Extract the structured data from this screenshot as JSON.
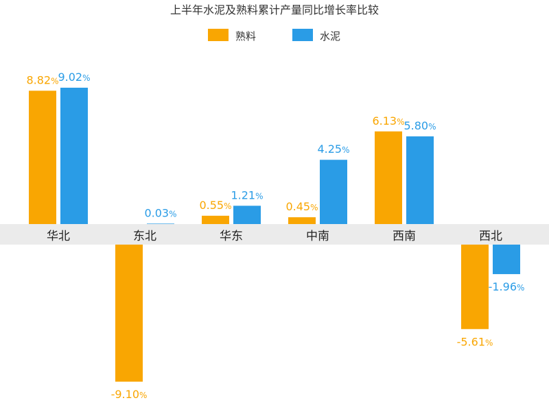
{
  "chart_data": {
    "type": "bar",
    "title": "上半年水泥及熟料累计产量同比增长率比较",
    "xlabel": "",
    "ylabel": "",
    "categories": [
      "华北",
      "东北",
      "华东",
      "中南",
      "西南",
      "西北"
    ],
    "series": [
      {
        "name": "熟料",
        "color": "#F9A602",
        "values": [
          8.82,
          -9.1,
          0.55,
          0.45,
          6.13,
          -5.61
        ],
        "labels": [
          "8.82",
          "-9.10",
          "0.55",
          "0.45",
          "6.13",
          "-5.61"
        ]
      },
      {
        "name": "水泥",
        "color": "#2A9CE6",
        "values": [
          9.02,
          0.03,
          1.21,
          4.25,
          5.8,
          -1.96
        ],
        "labels": [
          "9.02",
          "0.03",
          "1.21",
          "4.25",
          "5.80",
          "-1.96"
        ]
      }
    ],
    "value_suffix": "%",
    "ylim": [
      -9.1,
      9.02
    ],
    "grid": false,
    "legend_position": "top-center",
    "category_band_color": "#EBEBEB"
  }
}
